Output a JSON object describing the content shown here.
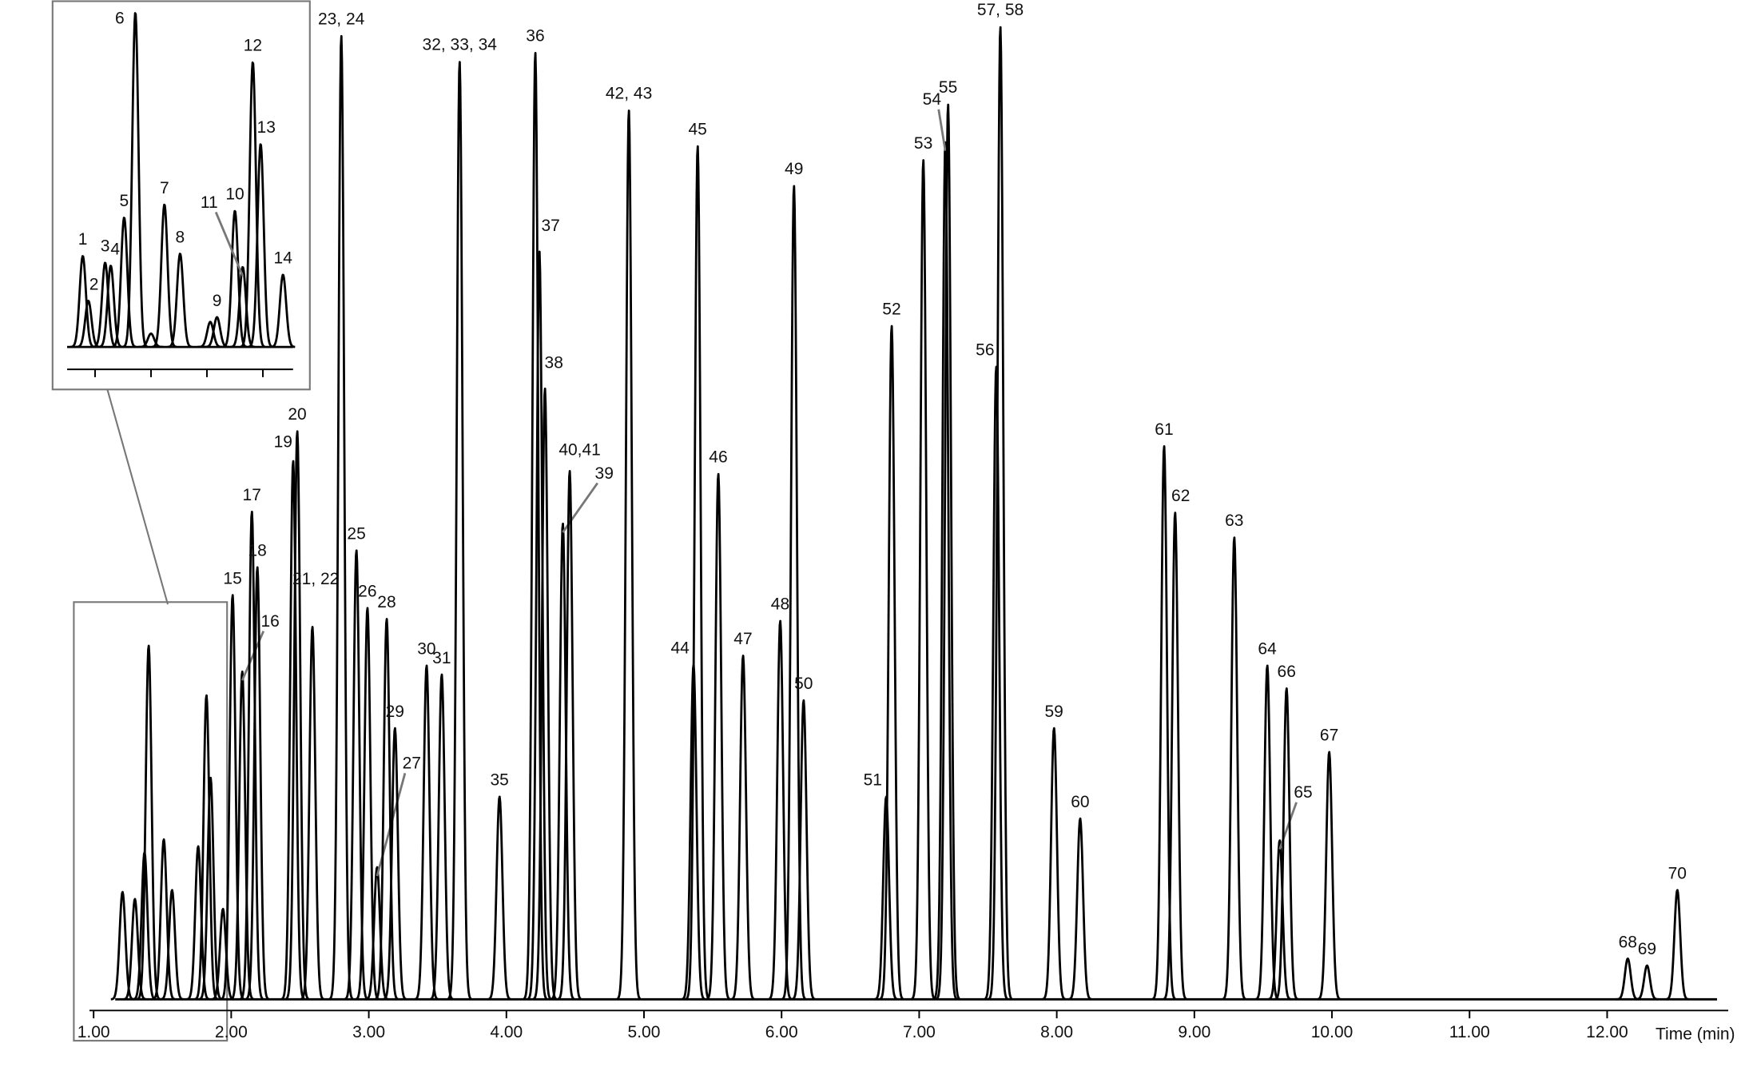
{
  "chart_data": [
    {
      "type": "line",
      "xlabel": "Time (min)",
      "color": "#000000",
      "xlim": [
        0.97,
        12.88
      ],
      "ylim": [
        0,
        100
      ],
      "xticks": [
        {
          "value": 1,
          "label": "1.00"
        },
        {
          "value": 2,
          "label": "2.00"
        },
        {
          "value": 3,
          "label": "3.00"
        },
        {
          "value": 4,
          "label": "4.00"
        },
        {
          "value": 5,
          "label": "5.00"
        },
        {
          "value": 6,
          "label": "6.00"
        },
        {
          "value": 7,
          "label": "7.00"
        },
        {
          "value": 8,
          "label": "8.00"
        },
        {
          "value": 9,
          "label": "9.00"
        },
        {
          "value": 10,
          "label": "10.00"
        },
        {
          "value": 11,
          "label": "11.00"
        },
        {
          "value": 12,
          "label": "12.00"
        }
      ],
      "x": [
        1.21,
        1.3,
        1.37,
        1.4,
        1.51,
        1.57,
        1.76,
        1.82,
        1.85,
        1.94,
        2.01,
        2.08,
        2.15,
        2.19,
        2.45,
        2.48,
        2.59,
        2.8,
        2.91,
        2.99,
        3.06,
        3.13,
        3.19,
        3.42,
        3.53,
        3.66,
        3.95,
        4.21,
        4.24,
        4.28,
        4.41,
        4.46,
        4.89,
        5.36,
        5.39,
        5.54,
        5.72,
        5.99,
        6.09,
        6.16,
        6.76,
        6.8,
        7.03,
        7.19,
        7.21,
        7.56,
        7.59,
        7.98,
        8.17,
        8.78,
        8.86,
        9.29,
        9.53,
        9.62,
        9.67,
        9.98,
        12.15,
        12.29,
        12.51
      ],
      "values": [
        10.8,
        10.1,
        14.8,
        35.6,
        16.1,
        11.0,
        15.4,
        30.6,
        22.3,
        9.1,
        40.7,
        33.0,
        49.1,
        43.5,
        54.2,
        57.2,
        37.5,
        97.0,
        45.2,
        39.4,
        13.3,
        38.3,
        27.3,
        33.6,
        32.7,
        94.4,
        20.4,
        95.3,
        75.3,
        61.5,
        47.9,
        53.2,
        89.5,
        33.7,
        85.9,
        52.9,
        34.6,
        38.1,
        81.9,
        30.1,
        20.4,
        67.8,
        84.5,
        86.3,
        90.1,
        63.7,
        97.9,
        27.3,
        18.2,
        55.7,
        49.0,
        46.5,
        33.6,
        16.0,
        31.3,
        24.9,
        4.1,
        3.4,
        11.0
      ],
      "labels": [
        null,
        null,
        null,
        null,
        null,
        null,
        null,
        null,
        null,
        null,
        "15",
        "16",
        "17",
        "18",
        "19",
        "20",
        "21, 22",
        "23, 24",
        "25",
        "26",
        "27",
        "28",
        "29",
        "30",
        "31",
        "32, 33, 34",
        "35",
        "36",
        "37",
        "38",
        "39",
        "40,41",
        "42, 43",
        "44",
        "45",
        "46",
        "47",
        "48",
        "49",
        "50",
        "51",
        "52",
        "53",
        "54",
        "55",
        "56",
        "57, 58",
        "59",
        "60",
        "61",
        "62",
        "63",
        "64",
        "65",
        "66",
        "67",
        "68",
        "69",
        "70"
      ]
    },
    {
      "type": "line",
      "color": "#000000",
      "xlim": [
        1.2,
        2.008
      ],
      "ylim": [
        0,
        102
      ],
      "xticks": [
        1.3,
        1.5,
        1.7,
        1.9
      ],
      "x": [
        1.256,
        1.276,
        1.336,
        1.356,
        1.404,
        1.444,
        1.5,
        1.548,
        1.604,
        1.712,
        1.736,
        1.8,
        1.828,
        1.864,
        1.892,
        1.972
      ],
      "values": [
        27.2,
        13.8,
        25.2,
        24.3,
        38.7,
        100,
        4.0,
        42.6,
        27.9,
        7.5,
        8.9,
        40.7,
        23.9,
        85.2,
        60.7,
        21.6
      ],
      "labels": [
        "1",
        "2",
        "3",
        "4",
        "5",
        "6",
        null,
        "7",
        "8",
        null,
        "9",
        "10",
        "11",
        "12",
        "13",
        "14"
      ]
    }
  ]
}
